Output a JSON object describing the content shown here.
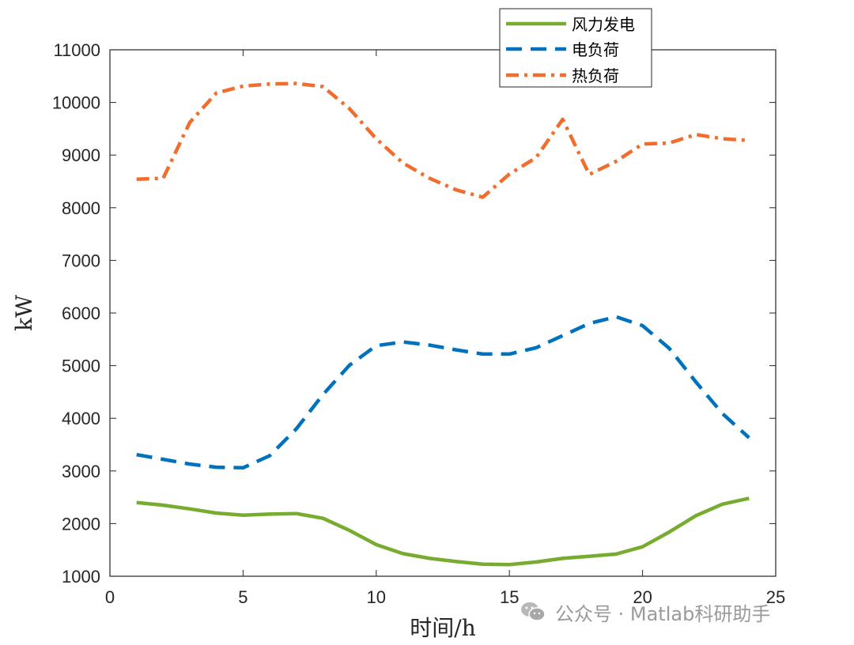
{
  "chart_data": {
    "type": "line",
    "title": "",
    "xlabel": "时间/h",
    "ylabel": "kW",
    "xlim": [
      0,
      25
    ],
    "ylim": [
      1000,
      11000
    ],
    "xticks": [
      0,
      5,
      10,
      15,
      20,
      25
    ],
    "yticks": [
      1000,
      2000,
      3000,
      4000,
      5000,
      6000,
      7000,
      8000,
      9000,
      10000,
      11000
    ],
    "grid": false,
    "legend_position": "top-center",
    "x": [
      1,
      2,
      3,
      4,
      5,
      6,
      7,
      8,
      9,
      10,
      11,
      12,
      13,
      14,
      15,
      16,
      17,
      18,
      19,
      20,
      21,
      22,
      23,
      24
    ],
    "series": [
      {
        "name": "风力发电",
        "color": "#77ac30",
        "style": "solid",
        "values": [
          2400,
          2350,
          2280,
          2200,
          2160,
          2180,
          2190,
          2100,
          1870,
          1600,
          1430,
          1340,
          1280,
          1230,
          1220,
          1270,
          1340,
          1380,
          1420,
          1560,
          1840,
          2150,
          2370,
          2480
        ]
      },
      {
        "name": "电负荷",
        "color": "#0072bd",
        "style": "dashed",
        "values": [
          3310,
          3220,
          3130,
          3070,
          3060,
          3290,
          3800,
          4450,
          5010,
          5380,
          5450,
          5390,
          5300,
          5220,
          5220,
          5340,
          5570,
          5800,
          5930,
          5760,
          5330,
          4690,
          4090,
          3630
        ]
      },
      {
        "name": "热负荷",
        "color": "#f26d2d",
        "style": "dashdot",
        "values": [
          8540,
          8560,
          9620,
          10180,
          10310,
          10350,
          10360,
          10300,
          9880,
          9310,
          8850,
          8560,
          8340,
          8200,
          8640,
          8950,
          9680,
          8630,
          8880,
          9210,
          9230,
          9390,
          9310,
          9280
        ]
      }
    ]
  },
  "watermark": {
    "icon": "wechat-icon",
    "text": "公众号 · Matlab科研助手"
  }
}
